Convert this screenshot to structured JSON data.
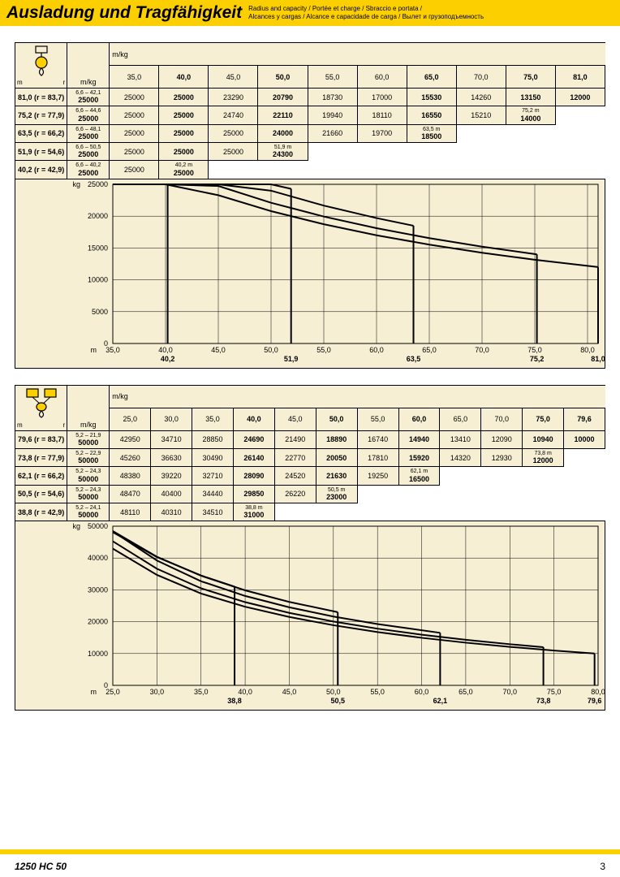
{
  "header": {
    "title": "Ausladung und Tragfähigkeit",
    "subtitle1": "Radius and capacity / Portée et charge / Sbraccio e portata /",
    "subtitle2": "Alcances y cargas / Alcance e capacidade de carga / Вылет и грузоподъемность"
  },
  "colors": {
    "yellow": "#fcd000",
    "beige": "#f7efd4",
    "border": "#000000"
  },
  "section1": {
    "unit_corner": "m/kg",
    "axis_corner_m": "m",
    "axis_corner_r": "r",
    "unit_col": "m/kg",
    "columns": [
      "35,0",
      "40,0",
      "45,0",
      "50,0",
      "55,0",
      "60,0",
      "65,0",
      "70,0",
      "75,0",
      "81,0"
    ],
    "bold_cols": [
      1,
      3,
      6,
      8,
      9
    ],
    "rows": [
      {
        "head": "81,0  (r = 83,7)",
        "sub_top": "6,6 – 42,1",
        "sub_bot": "25000",
        "cells": [
          "25000",
          "25000",
          "23290",
          "20790",
          "18730",
          "17000",
          "15530",
          "14260",
          "13150",
          "12000"
        ],
        "special": null,
        "bold_last": true
      },
      {
        "head": "75,2  (r = 77,9)",
        "sub_top": "6,6 – 44,6",
        "sub_bot": "25000",
        "cells": [
          "25000",
          "25000",
          "24740",
          "22110",
          "19940",
          "18110",
          "16550",
          "15210"
        ],
        "special": {
          "idx": 8,
          "top": "75,2 m",
          "bot": "14000"
        }
      },
      {
        "head": "63,5  (r = 66,2)",
        "sub_top": "6,6 – 48,1",
        "sub_bot": "25000",
        "cells": [
          "25000",
          "25000",
          "25000",
          "24000",
          "21660",
          "19700"
        ],
        "special": {
          "idx": 6,
          "top": "63,5 m",
          "bot": "18500"
        }
      },
      {
        "head": "51,9  (r = 54,6)",
        "sub_top": "6,6 – 50,5",
        "sub_bot": "25000",
        "cells": [
          "25000",
          "25000",
          "25000"
        ],
        "special": {
          "idx": 3,
          "top": "51,9 m",
          "bot": "24300"
        }
      },
      {
        "head": "40,2  (r = 42,9)",
        "sub_top": "6,6 – 40,2",
        "sub_bot": "25000",
        "cells": [
          "25000"
        ],
        "special": {
          "idx": 1,
          "top": "40,2 m",
          "bot": "25000"
        }
      }
    ],
    "chart": {
      "kg_label": "kg",
      "y_ticks": [
        "25000",
        "20000",
        "15000",
        "10000",
        "5000",
        "0"
      ],
      "y_max": 25000,
      "x_label": "m",
      "x_min": 35,
      "x_max": 81,
      "x_ticks": [
        "35,0",
        "40,0",
        "45,0",
        "50,0",
        "55,0",
        "60,0",
        "65,0",
        "70,0",
        "75,0",
        "80,0"
      ],
      "x_sub": [
        "",
        "40,2",
        "",
        "",
        "51,9",
        "",
        "",
        "63,5",
        "",
        "75,2",
        "81,0"
      ],
      "curves": [
        {
          "end_x": 81.0,
          "end_y": 12000,
          "data": [
            [
              35,
              25000
            ],
            [
              40,
              25000
            ],
            [
              45,
              23290
            ],
            [
              50,
              20790
            ],
            [
              55,
              18730
            ],
            [
              60,
              17000
            ],
            [
              65,
              15530
            ],
            [
              70,
              14260
            ],
            [
              75,
              13150
            ],
            [
              81,
              12000
            ]
          ]
        },
        {
          "end_x": 75.2,
          "end_y": 14000,
          "data": [
            [
              35,
              25000
            ],
            [
              40,
              25000
            ],
            [
              45,
              24740
            ],
            [
              50,
              22110
            ],
            [
              55,
              19940
            ],
            [
              60,
              18110
            ],
            [
              65,
              16550
            ],
            [
              70,
              15210
            ],
            [
              75.2,
              14000
            ]
          ]
        },
        {
          "end_x": 63.5,
          "end_y": 18500,
          "data": [
            [
              35,
              25000
            ],
            [
              40,
              25000
            ],
            [
              45,
              25000
            ],
            [
              50,
              24000
            ],
            [
              55,
              21660
            ],
            [
              60,
              19700
            ],
            [
              63.5,
              18500
            ]
          ]
        },
        {
          "end_x": 51.9,
          "end_y": 24300,
          "data": [
            [
              35,
              25000
            ],
            [
              40,
              25000
            ],
            [
              45,
              25000
            ],
            [
              50,
              25000
            ],
            [
              51.9,
              24300
            ]
          ]
        },
        {
          "end_x": 40.2,
          "end_y": 25000,
          "data": [
            [
              35,
              25000
            ],
            [
              40,
              25000
            ],
            [
              40.2,
              25000
            ]
          ]
        }
      ]
    }
  },
  "section2": {
    "unit_corner": "m/kg",
    "axis_corner_m": "m",
    "axis_corner_r": "r",
    "unit_col": "m/kg",
    "columns": [
      "25,0",
      "30,0",
      "35,0",
      "40,0",
      "45,0",
      "50,0",
      "55,0",
      "60,0",
      "65,0",
      "70,0",
      "75,0",
      "79,6"
    ],
    "bold_cols": [
      3,
      5,
      7,
      10,
      11
    ],
    "rows": [
      {
        "head": "79,6  (r = 83,7)",
        "sub_top": "5,2 – 21,9",
        "sub_bot": "50000",
        "cells": [
          "42950",
          "34710",
          "28850",
          "24690",
          "21490",
          "18890",
          "16740",
          "14940",
          "13410",
          "12090",
          "10940",
          "10000"
        ],
        "special": null,
        "bold_last": true
      },
      {
        "head": "73,8  (r = 77,9)",
        "sub_top": "5,2 – 22,9",
        "sub_bot": "50000",
        "cells": [
          "45260",
          "36630",
          "30490",
          "26140",
          "22770",
          "20050",
          "17810",
          "15920",
          "14320",
          "12930"
        ],
        "special": {
          "idx": 10,
          "top": "73,8 m",
          "bot": "12000"
        }
      },
      {
        "head": "62,1  (r = 66,2)",
        "sub_top": "5,2 – 24,3",
        "sub_bot": "50000",
        "cells": [
          "48380",
          "39220",
          "32710",
          "28090",
          "24520",
          "21630",
          "19250"
        ],
        "special": {
          "idx": 7,
          "top": "62,1 m",
          "bot": "16500"
        }
      },
      {
        "head": "50,5  (r = 54,6)",
        "sub_top": "5,2 – 24,3",
        "sub_bot": "50000",
        "cells": [
          "48470",
          "40400",
          "34440",
          "29850",
          "26220"
        ],
        "special": {
          "idx": 5,
          "top": "50,5 m",
          "bot": "23000"
        }
      },
      {
        "head": "38,8  (r = 42,9)",
        "sub_top": "5,2 – 24,1",
        "sub_bot": "50000",
        "cells": [
          "48110",
          "40310",
          "34510"
        ],
        "special": {
          "idx": 3,
          "top": "38,8 m",
          "bot": "31000"
        }
      }
    ],
    "chart": {
      "kg_label": "kg",
      "y_ticks": [
        "50000",
        "40000",
        "30000",
        "20000",
        "10000",
        "0"
      ],
      "y_max": 50000,
      "x_label": "m",
      "x_min": 25,
      "x_max": 80,
      "x_ticks": [
        "25,0",
        "30,0",
        "35,0",
        "40,0",
        "45,0",
        "50,0",
        "55,0",
        "60,0",
        "65,0",
        "70,0",
        "75,0",
        "80,0"
      ],
      "x_sub": [
        "",
        "",
        "",
        "38,8",
        "",
        "",
        "50,5",
        "",
        "",
        "62,1",
        "",
        "73,8",
        "79,6"
      ],
      "curves": [
        {
          "end_x": 79.6,
          "end_y": 10000,
          "data": [
            [
              25,
              42950
            ],
            [
              30,
              34710
            ],
            [
              35,
              28850
            ],
            [
              40,
              24690
            ],
            [
              45,
              21490
            ],
            [
              50,
              18890
            ],
            [
              55,
              16740
            ],
            [
              60,
              14940
            ],
            [
              65,
              13410
            ],
            [
              70,
              12090
            ],
            [
              75,
              10940
            ],
            [
              79.6,
              10000
            ]
          ]
        },
        {
          "end_x": 73.8,
          "end_y": 12000,
          "data": [
            [
              25,
              45260
            ],
            [
              30,
              36630
            ],
            [
              35,
              30490
            ],
            [
              40,
              26140
            ],
            [
              45,
              22770
            ],
            [
              50,
              20050
            ],
            [
              55,
              17810
            ],
            [
              60,
              15920
            ],
            [
              65,
              14320
            ],
            [
              70,
              12930
            ],
            [
              73.8,
              12000
            ]
          ]
        },
        {
          "end_x": 62.1,
          "end_y": 16500,
          "data": [
            [
              25,
              48380
            ],
            [
              30,
              39220
            ],
            [
              35,
              32710
            ],
            [
              40,
              28090
            ],
            [
              45,
              24520
            ],
            [
              50,
              21630
            ],
            [
              55,
              19250
            ],
            [
              62.1,
              16500
            ]
          ]
        },
        {
          "end_x": 50.5,
          "end_y": 23000,
          "data": [
            [
              25,
              48470
            ],
            [
              30,
              40400
            ],
            [
              35,
              34440
            ],
            [
              40,
              29850
            ],
            [
              45,
              26220
            ],
            [
              50.5,
              23000
            ]
          ]
        },
        {
          "end_x": 38.8,
          "end_y": 31000,
          "data": [
            [
              25,
              48110
            ],
            [
              30,
              40310
            ],
            [
              35,
              34510
            ],
            [
              38.8,
              31000
            ]
          ]
        }
      ]
    }
  },
  "footer": {
    "model": "1250 HC 50",
    "page": "3"
  },
  "icons": {
    "single_hook": "single",
    "double_hook": "double"
  }
}
